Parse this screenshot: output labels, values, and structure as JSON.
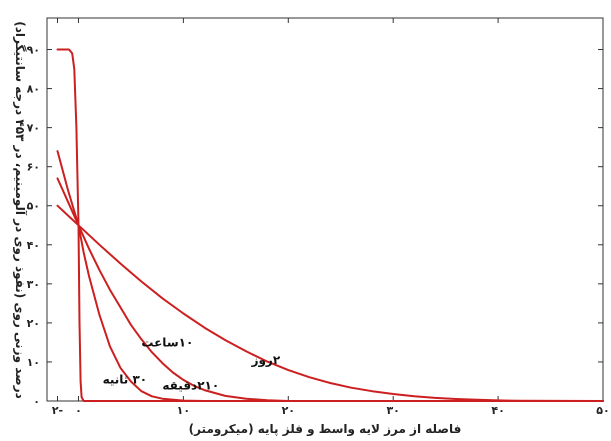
{
  "chart_data": {
    "type": "line",
    "xlabel": "فاصله از مرز لایه واسط و فلز پایه (میکرومتر)",
    "ylabel": "درصد وزنی روی (نفوذ روی در آلومینیم، در ۴۵۳ درجه سانتیگراد)",
    "xlim": [
      -3,
      50
    ],
    "ylim": [
      0,
      95
    ],
    "x_ticks": [
      {
        "value": -2,
        "label": "۲-"
      },
      {
        "value": 0,
        "label": "۰"
      },
      {
        "value": 10,
        "label": "۱۰"
      },
      {
        "value": 20,
        "label": "۲۰"
      },
      {
        "value": 30,
        "label": "۳۰"
      },
      {
        "value": 40,
        "label": "۴۰"
      },
      {
        "value": 50,
        "label": "۵۰"
      }
    ],
    "y_ticks": [
      {
        "value": 0,
        "label": "۰"
      },
      {
        "value": 10,
        "label": "۱۰"
      },
      {
        "value": 20,
        "label": "۲۰"
      },
      {
        "value": 30,
        "label": "۳۰"
      },
      {
        "value": 40,
        "label": "۴۰"
      },
      {
        "value": 50,
        "label": "۵۰"
      },
      {
        "value": 60,
        "label": "۶۰"
      },
      {
        "value": 70,
        "label": "۷۰"
      },
      {
        "value": 80,
        "label": "۸۰"
      },
      {
        "value": 90,
        "label": "۹۰"
      }
    ],
    "grid": false,
    "line_color": "#cc1f1f",
    "series": [
      {
        "name": "۳۰ ثانیه",
        "x": [
          -2.0,
          -0.9,
          -0.6,
          -0.4,
          -0.2,
          0.0,
          0.1,
          0.2,
          0.3,
          0.5,
          2,
          10,
          20,
          50
        ],
        "y": [
          90,
          90,
          89,
          85,
          70,
          45,
          20,
          5,
          1,
          0,
          0,
          0,
          0,
          0
        ]
      },
      {
        "name": "۲۱۰ دقیقه",
        "x": [
          -2.0,
          -1,
          0,
          0.5,
          1,
          2,
          3,
          4,
          5,
          6,
          7,
          8,
          10,
          12,
          50
        ],
        "y": [
          64,
          54,
          45,
          38,
          32,
          22,
          14,
          8.5,
          5,
          2.5,
          1.2,
          0.6,
          0.1,
          0,
          0
        ]
      },
      {
        "name": "۱۰ ساعت",
        "x": [
          -2.0,
          -1,
          0,
          1,
          2,
          3,
          4,
          5,
          6,
          7,
          8,
          9,
          10,
          11,
          12,
          14,
          16,
          18,
          20,
          50
        ],
        "y": [
          57,
          51,
          45,
          39,
          33.5,
          28.5,
          24,
          19.5,
          15.8,
          12.5,
          9.7,
          7.3,
          5.4,
          3.9,
          2.8,
          1.3,
          0.6,
          0.2,
          0,
          0
        ]
      },
      {
        "name": "۲ روز",
        "x": [
          -2.0,
          -1,
          0,
          2,
          4,
          6,
          8,
          10,
          12,
          14,
          16,
          18,
          20,
          22,
          24,
          26,
          28,
          30,
          32,
          34,
          36,
          38,
          40,
          42,
          50
        ],
        "y": [
          50,
          47.5,
          45,
          40,
          35.2,
          30.6,
          26.3,
          22.4,
          18.8,
          15.6,
          12.7,
          10.1,
          7.9,
          6.1,
          4.6,
          3.4,
          2.5,
          1.8,
          1.2,
          0.8,
          0.5,
          0.3,
          0.15,
          0.05,
          0
        ]
      }
    ],
    "annotations": [
      {
        "text": "۳۰ ثانیه",
        "series": 0
      },
      {
        "text": "۲۱۰دقیقه",
        "series": 1
      },
      {
        "text": "۱۰ساعت",
        "series": 2
      },
      {
        "text": "۲روز",
        "series": 3
      }
    ]
  }
}
